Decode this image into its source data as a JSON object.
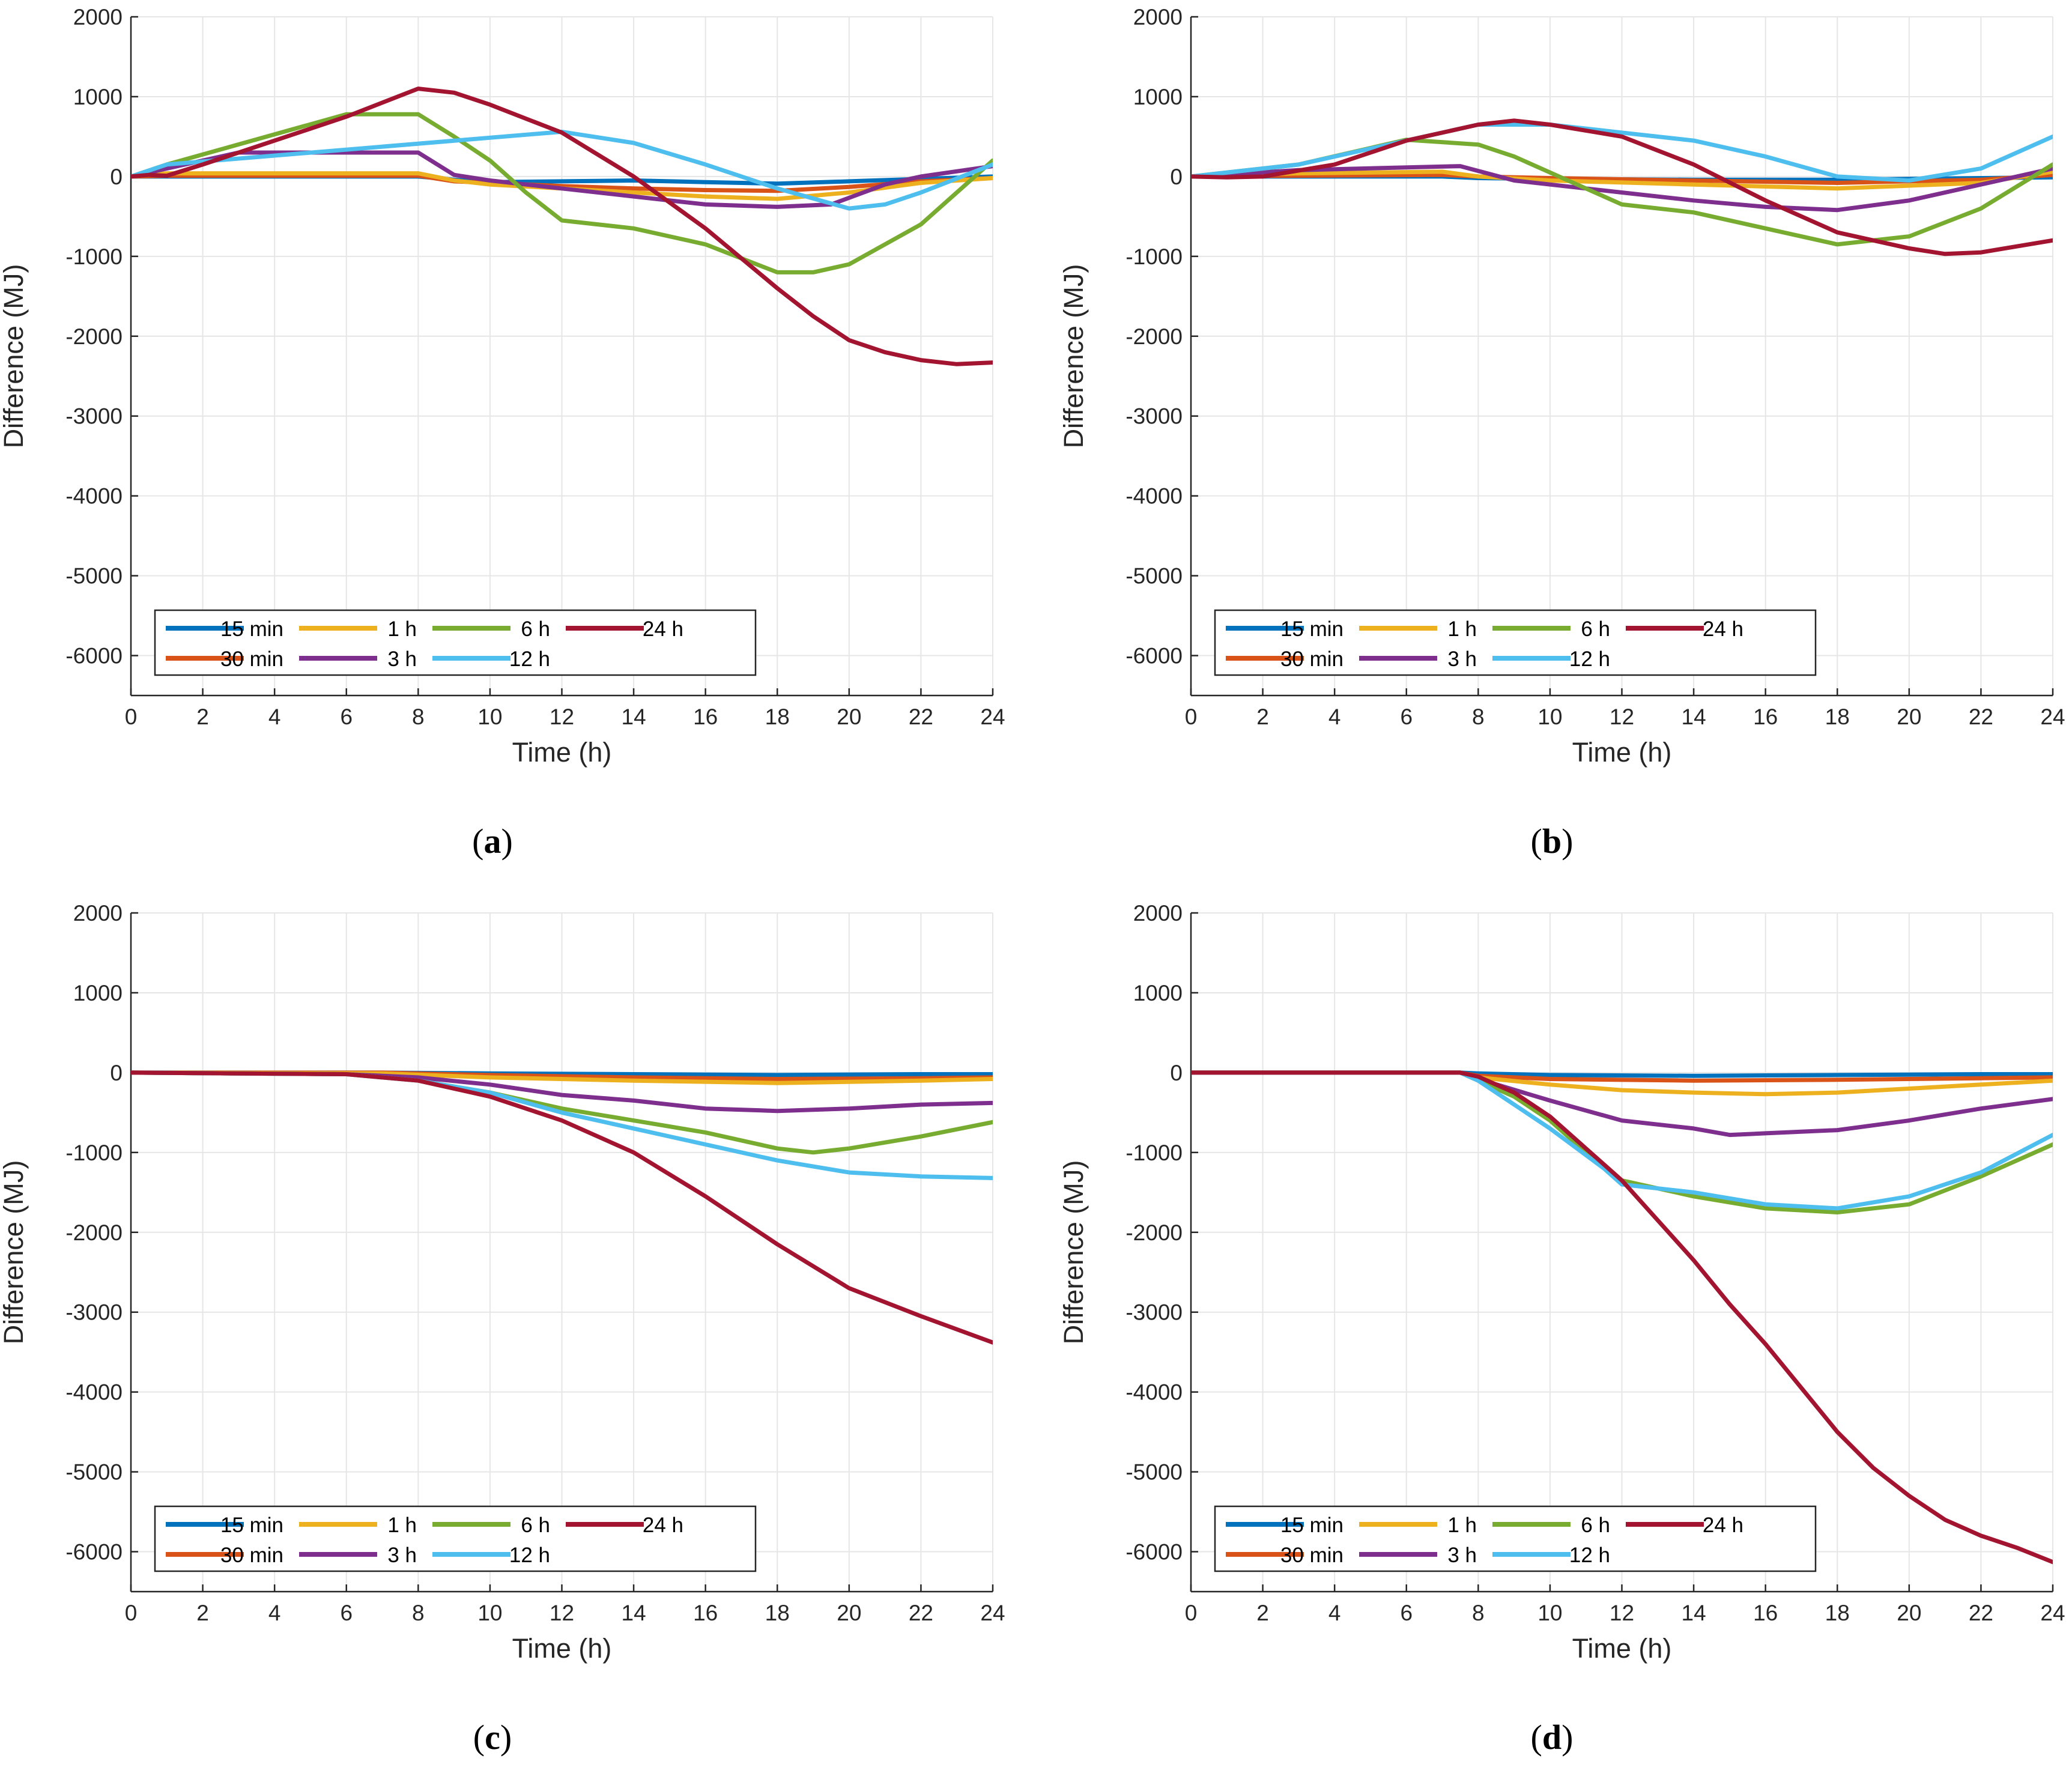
{
  "colors": {
    "15 min": "#0072BD",
    "30 min": "#D95319",
    "1 h": "#EDB120",
    "3 h": "#7E2F8E",
    "6 h": "#77AC30",
    "12 h": "#4DBEEE",
    "24 h": "#A2142F",
    "grid": "#e6e6e6",
    "axis": "#262626"
  },
  "chart_data": [
    {
      "panel": "a",
      "caption": "(a)",
      "type": "line",
      "xlabel": "Time (h)",
      "ylabel": "Difference (MJ)",
      "xlim": [
        0,
        24
      ],
      "ylim": [
        -6500,
        2000
      ],
      "xticks": [
        "0",
        "2",
        "4",
        "6",
        "8",
        "10",
        "12",
        "14",
        "16",
        "18",
        "20",
        "22",
        "24"
      ],
      "yticks": [
        "2000",
        "1000",
        "0",
        "-1000",
        "-2000",
        "-3000",
        "-4000",
        "-5000",
        "-6000"
      ],
      "grid": true,
      "legend": [
        "15 min",
        "30 min",
        "1 h",
        "3 h",
        "6 h",
        "12 h",
        "24 h"
      ],
      "legend_location": "bottom-left",
      "series": [
        {
          "name": "15 min",
          "x": [
            0,
            1,
            8,
            9,
            10,
            12,
            14,
            16,
            18,
            20,
            22,
            24
          ],
          "y": [
            0,
            0,
            0,
            -40,
            -70,
            -60,
            -50,
            -70,
            -90,
            -60,
            -30,
            0
          ]
        },
        {
          "name": "30 min",
          "x": [
            0,
            1,
            8,
            9,
            10,
            12,
            14,
            16,
            18,
            20,
            22,
            24
          ],
          "y": [
            0,
            10,
            10,
            -60,
            -80,
            -120,
            -150,
            -170,
            -180,
            -130,
            -60,
            -20
          ]
        },
        {
          "name": "1 h",
          "x": [
            0,
            1,
            8,
            9,
            10,
            12,
            14,
            16,
            18,
            20,
            22,
            24
          ],
          "y": [
            0,
            40,
            40,
            -50,
            -100,
            -150,
            -200,
            -250,
            -280,
            -200,
            -80,
            -20
          ]
        },
        {
          "name": "3 h",
          "x": [
            0,
            1,
            3,
            8,
            9,
            10,
            12,
            14,
            16,
            18,
            19.5,
            21,
            22,
            24
          ],
          "y": [
            0,
            100,
            300,
            300,
            20,
            -50,
            -150,
            -250,
            -350,
            -380,
            -350,
            -100,
            0,
            130
          ]
        },
        {
          "name": "6 h",
          "x": [
            0,
            1,
            6,
            8,
            9,
            10,
            11,
            12,
            14,
            16,
            18,
            19,
            20,
            22,
            24
          ],
          "y": [
            0,
            150,
            780,
            780,
            500,
            200,
            -200,
            -550,
            -650,
            -850,
            -1200,
            -1200,
            -1100,
            -600,
            200
          ]
        },
        {
          "name": "12 h",
          "x": [
            0,
            1,
            12,
            14,
            16,
            18,
            20,
            21,
            22,
            24
          ],
          "y": [
            0,
            150,
            560,
            420,
            150,
            -150,
            -400,
            -350,
            -200,
            150
          ]
        },
        {
          "name": "24 h",
          "x": [
            0,
            0.5,
            1,
            2,
            4,
            6,
            8,
            9,
            10,
            12,
            14,
            16,
            18,
            19,
            20,
            21,
            22,
            23,
            24
          ],
          "y": [
            0,
            20,
            10,
            150,
            450,
            750,
            1100,
            1050,
            900,
            550,
            0,
            -650,
            -1400,
            -1750,
            -2050,
            -2200,
            -2300,
            -2350,
            -2330
          ]
        }
      ]
    },
    {
      "panel": "b",
      "caption": "(b)",
      "type": "line",
      "xlabel": "Time (h)",
      "ylabel": "Difference (MJ)",
      "xlim": [
        0,
        24
      ],
      "ylim": [
        -6500,
        2000
      ],
      "xticks": [
        "0",
        "2",
        "4",
        "6",
        "8",
        "10",
        "12",
        "14",
        "16",
        "18",
        "20",
        "22",
        "24"
      ],
      "yticks": [
        "2000",
        "1000",
        "0",
        "-1000",
        "-2000",
        "-3000",
        "-4000",
        "-5000",
        "-6000"
      ],
      "grid": true,
      "legend": [
        "15 min",
        "30 min",
        "1 h",
        "3 h",
        "6 h",
        "12 h",
        "24 h"
      ],
      "legend_location": "bottom-left",
      "series": [
        {
          "name": "15 min",
          "x": [
            0,
            3,
            7,
            8,
            10,
            14,
            18,
            22,
            24
          ],
          "y": [
            0,
            0,
            0,
            -20,
            -30,
            -40,
            -40,
            -20,
            -10
          ]
        },
        {
          "name": "30 min",
          "x": [
            0,
            3,
            7,
            8,
            10,
            14,
            18,
            22,
            24
          ],
          "y": [
            0,
            10,
            20,
            0,
            -20,
            -50,
            -80,
            -40,
            20
          ]
        },
        {
          "name": "1 h",
          "x": [
            0,
            3,
            7,
            8,
            10,
            14,
            18,
            22,
            24
          ],
          "y": [
            0,
            40,
            60,
            0,
            -50,
            -100,
            -150,
            -80,
            60
          ]
        },
        {
          "name": "3 h",
          "x": [
            0,
            3,
            7.5,
            9,
            10,
            12,
            14,
            16,
            18,
            20,
            22,
            24
          ],
          "y": [
            0,
            80,
            130,
            -50,
            -100,
            -200,
            -300,
            -380,
            -420,
            -300,
            -100,
            100
          ]
        },
        {
          "name": "6 h",
          "x": [
            0,
            3,
            6,
            8,
            9,
            10,
            11,
            12,
            14,
            16,
            18,
            20,
            22,
            24
          ],
          "y": [
            0,
            150,
            460,
            400,
            250,
            50,
            -150,
            -350,
            -450,
            -650,
            -850,
            -750,
            -400,
            150
          ]
        },
        {
          "name": "12 h",
          "x": [
            0,
            3,
            6,
            8,
            10,
            12,
            14,
            16,
            18,
            20,
            22,
            24
          ],
          "y": [
            0,
            150,
            450,
            650,
            650,
            550,
            450,
            250,
            0,
            -50,
            100,
            500
          ]
        },
        {
          "name": "24 h",
          "x": [
            0,
            1,
            2,
            4,
            6,
            8,
            9,
            10,
            12,
            14,
            16,
            18,
            20,
            21,
            22,
            24
          ],
          "y": [
            0,
            -10,
            0,
            150,
            450,
            650,
            700,
            650,
            500,
            150,
            -300,
            -700,
            -900,
            -970,
            -950,
            -800
          ]
        }
      ]
    },
    {
      "panel": "c",
      "caption": "(c)",
      "type": "line",
      "xlabel": "Time (h)",
      "ylabel": "Difference (MJ)",
      "xlim": [
        0,
        24
      ],
      "ylim": [
        -6500,
        2000
      ],
      "xticks": [
        "0",
        "2",
        "4",
        "6",
        "8",
        "10",
        "12",
        "14",
        "16",
        "18",
        "20",
        "22",
        "24"
      ],
      "yticks": [
        "2000",
        "1000",
        "0",
        "-1000",
        "-2000",
        "-3000",
        "-4000",
        "-5000",
        "-6000"
      ],
      "grid": true,
      "legend": [
        "15 min",
        "30 min",
        "1 h",
        "3 h",
        "6 h",
        "12 h",
        "24 h"
      ],
      "legend_location": "bottom-left",
      "series": [
        {
          "name": "15 min",
          "x": [
            0,
            7,
            10,
            14,
            18,
            22,
            24
          ],
          "y": [
            0,
            0,
            -10,
            -20,
            -30,
            -20,
            -20
          ]
        },
        {
          "name": "30 min",
          "x": [
            0,
            7,
            10,
            14,
            18,
            22,
            24
          ],
          "y": [
            0,
            0,
            -30,
            -60,
            -80,
            -70,
            -60
          ]
        },
        {
          "name": "1 h",
          "x": [
            0,
            7,
            10,
            14,
            18,
            22,
            24
          ],
          "y": [
            0,
            -10,
            -60,
            -100,
            -130,
            -100,
            -80
          ]
        },
        {
          "name": "3 h",
          "x": [
            0,
            6,
            8,
            10,
            12,
            14,
            16,
            18,
            20,
            22,
            24
          ],
          "y": [
            0,
            -20,
            -60,
            -150,
            -280,
            -350,
            -450,
            -480,
            -450,
            -400,
            -380
          ]
        },
        {
          "name": "6 h",
          "x": [
            0,
            6,
            8,
            10,
            12,
            14,
            16,
            18,
            19,
            20,
            22,
            24
          ],
          "y": [
            0,
            -20,
            -100,
            -250,
            -450,
            -600,
            -750,
            -950,
            -1000,
            -950,
            -800,
            -620
          ]
        },
        {
          "name": "12 h",
          "x": [
            0,
            6,
            8,
            10,
            12,
            14,
            16,
            18,
            20,
            22,
            24
          ],
          "y": [
            0,
            -20,
            -100,
            -250,
            -500,
            -700,
            -900,
            -1100,
            -1250,
            -1300,
            -1320
          ]
        },
        {
          "name": "24 h",
          "x": [
            0,
            6,
            8,
            10,
            12,
            14,
            16,
            18,
            20,
            22,
            24
          ],
          "y": [
            0,
            -20,
            -100,
            -300,
            -600,
            -1000,
            -1550,
            -2150,
            -2700,
            -3050,
            -3380
          ]
        }
      ]
    },
    {
      "panel": "d",
      "caption": "(d)",
      "type": "line",
      "xlabel": "Time (h)",
      "ylabel": "Difference (MJ)",
      "xlim": [
        0,
        24
      ],
      "ylim": [
        -6500,
        2000
      ],
      "xticks": [
        "0",
        "2",
        "4",
        "6",
        "8",
        "10",
        "12",
        "14",
        "16",
        "18",
        "20",
        "22",
        "24"
      ],
      "yticks": [
        "2000",
        "1000",
        "0",
        "-1000",
        "-2000",
        "-3000",
        "-4000",
        "-5000",
        "-6000"
      ],
      "grid": true,
      "legend": [
        "15 min",
        "30 min",
        "1 h",
        "3 h",
        "6 h",
        "12 h",
        "24 h"
      ],
      "legend_location": "bottom-left",
      "series": [
        {
          "name": "15 min",
          "x": [
            0,
            7.5,
            8,
            10,
            14,
            18,
            22,
            24
          ],
          "y": [
            0,
            0,
            -10,
            -30,
            -40,
            -30,
            -20,
            -20
          ]
        },
        {
          "name": "30 min",
          "x": [
            0,
            7.5,
            8,
            10,
            14,
            18,
            22,
            24
          ],
          "y": [
            0,
            0,
            -40,
            -80,
            -100,
            -90,
            -70,
            -60
          ]
        },
        {
          "name": "1 h",
          "x": [
            0,
            7.5,
            8,
            10,
            12,
            14,
            16,
            18,
            20,
            22,
            24
          ],
          "y": [
            0,
            0,
            -60,
            -150,
            -220,
            -250,
            -270,
            -250,
            -200,
            -150,
            -100
          ]
        },
        {
          "name": "3 h",
          "x": [
            0,
            7.5,
            8,
            10,
            12,
            14,
            15,
            16,
            18,
            20,
            22,
            24
          ],
          "y": [
            0,
            0,
            -80,
            -350,
            -600,
            -700,
            -780,
            -760,
            -720,
            -600,
            -450,
            -330
          ]
        },
        {
          "name": "6 h",
          "x": [
            0,
            7.5,
            8,
            9,
            10,
            11,
            12,
            14,
            16,
            18,
            20,
            22,
            24
          ],
          "y": [
            0,
            0,
            -100,
            -300,
            -600,
            -1000,
            -1350,
            -1550,
            -1700,
            -1750,
            -1650,
            -1300,
            -900
          ]
        },
        {
          "name": "12 h",
          "x": [
            0,
            7.5,
            8,
            10,
            11.5,
            12,
            14,
            16,
            18,
            20,
            22,
            24
          ],
          "y": [
            0,
            0,
            -100,
            -700,
            -1200,
            -1400,
            -1500,
            -1650,
            -1700,
            -1550,
            -1250,
            -780
          ]
        },
        {
          "name": "24 h",
          "x": [
            0,
            5,
            7.5,
            8,
            9,
            10,
            11,
            12,
            13,
            14,
            15,
            16,
            17,
            18,
            19,
            20,
            21,
            22,
            23,
            24
          ],
          "y": [
            0,
            0,
            0,
            -50,
            -250,
            -550,
            -950,
            -1350,
            -1850,
            -2350,
            -2900,
            -3400,
            -3950,
            -4500,
            -4950,
            -5300,
            -5600,
            -5800,
            -5950,
            -6130
          ]
        }
      ]
    }
  ]
}
